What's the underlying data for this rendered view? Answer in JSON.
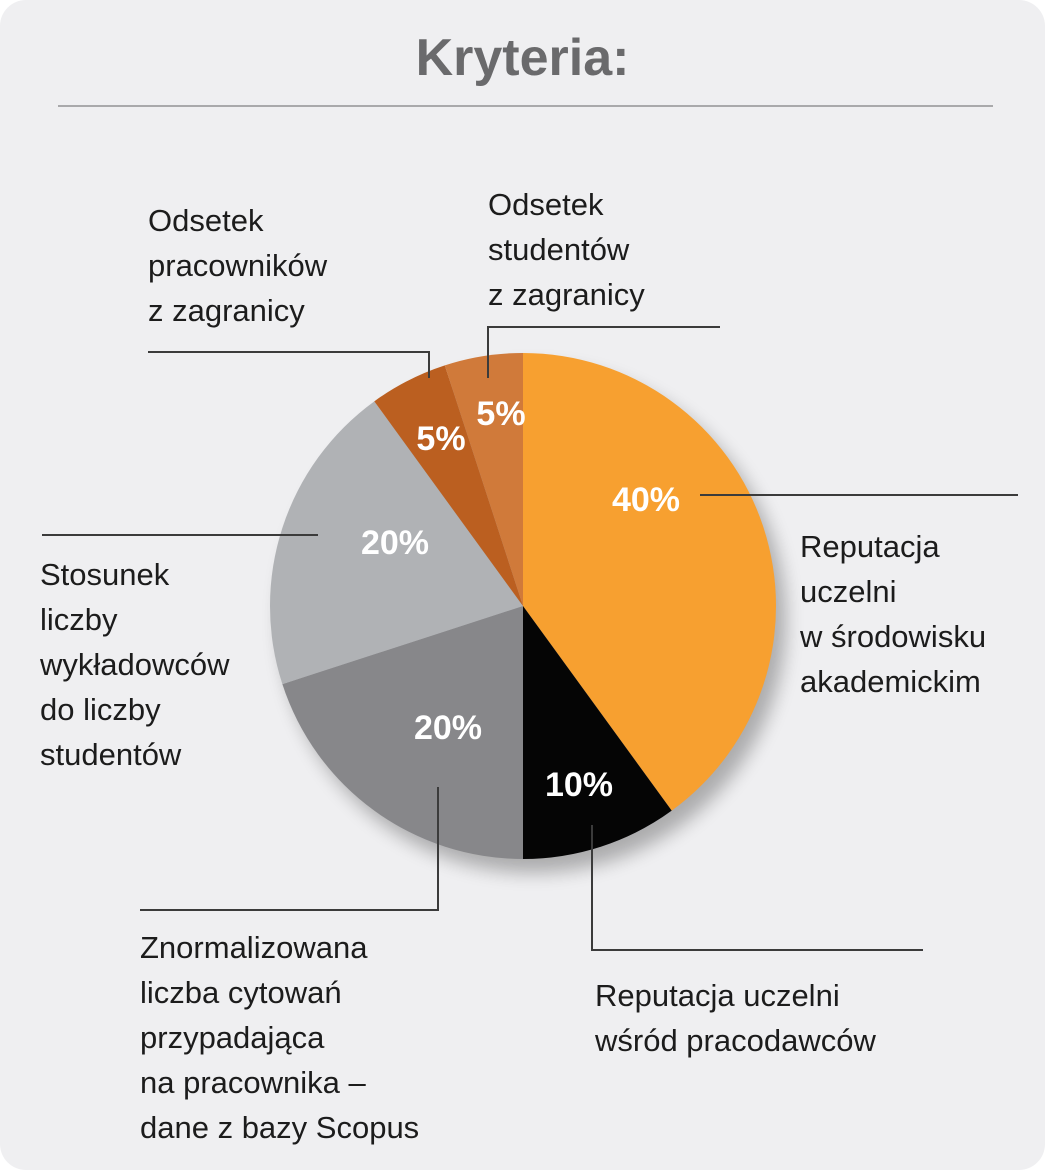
{
  "chart_data": {
    "type": "pie",
    "title": "Kryteria:",
    "slices": [
      {
        "label": "Reputacja\nuczelni\nw środowisku\nakademickim",
        "value": 40,
        "value_label": "40%",
        "color": "#f7a030"
      },
      {
        "label": "Reputacja uczelni\nwśród pracodawców",
        "value": 10,
        "value_label": "10%",
        "color": "#050505"
      },
      {
        "label": "Znormalizowana\nliczba cytowań\nprzypadająca\nna pracownika –\ndane z bazy Scopus",
        "value": 20,
        "value_label": "20%",
        "color": "#87878a"
      },
      {
        "label": "Stosunek\nliczby\nwykładowców\ndo liczby\nstudentów",
        "value": 20,
        "value_label": "20%",
        "color": "#b0b2b5"
      },
      {
        "label": "Odsetek\npracowników\nz zagranicy",
        "value": 5,
        "value_label": "5%",
        "color": "#bb5f20"
      },
      {
        "label": "Odsetek\nstudentów\nz zagranicy",
        "value": 5,
        "value_label": "5%",
        "color": "#d07a3a"
      }
    ]
  }
}
